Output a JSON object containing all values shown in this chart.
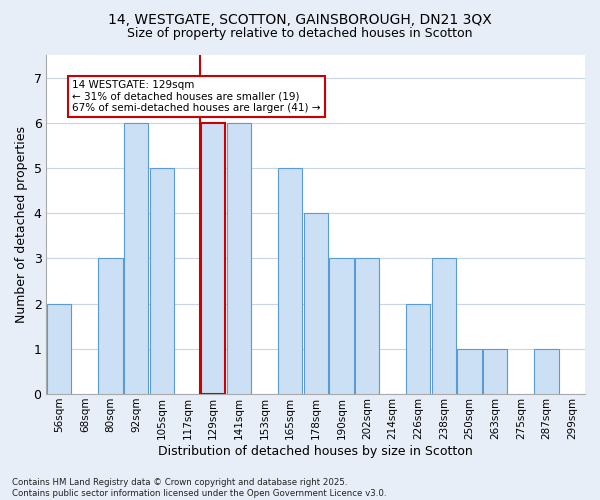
{
  "title_line1": "14, WESTGATE, SCOTTON, GAINSBOROUGH, DN21 3QX",
  "title_line2": "Size of property relative to detached houses in Scotton",
  "xlabel": "Distribution of detached houses by size in Scotton",
  "ylabel": "Number of detached properties",
  "footer": "Contains HM Land Registry data © Crown copyright and database right 2025.\nContains public sector information licensed under the Open Government Licence v3.0.",
  "categories": [
    "56sqm",
    "68sqm",
    "80sqm",
    "92sqm",
    "105sqm",
    "117sqm",
    "129sqm",
    "141sqm",
    "153sqm",
    "165sqm",
    "178sqm",
    "190sqm",
    "202sqm",
    "214sqm",
    "226sqm",
    "238sqm",
    "250sqm",
    "263sqm",
    "275sqm",
    "287sqm",
    "299sqm"
  ],
  "values": [
    2,
    0,
    3,
    6,
    5,
    0,
    6,
    6,
    0,
    5,
    4,
    3,
    3,
    0,
    2,
    3,
    1,
    1,
    0,
    1,
    0
  ],
  "highlight_index": 6,
  "bar_color": "#cce0f5",
  "bar_edge_color": "#5b9bd5",
  "highlight_bar_edge_color": "#cc0000",
  "highlight_line_color": "#cc0000",
  "annotation_text": "14 WESTGATE: 129sqm\n← 31% of detached houses are smaller (19)\n67% of semi-detached houses are larger (41) →",
  "annotation_box_edge": "#cc0000",
  "ylim": [
    0,
    7.5
  ],
  "yticks": [
    0,
    1,
    2,
    3,
    4,
    5,
    6,
    7
  ],
  "background_color": "#e8eef8",
  "plot_bg_color": "#ffffff",
  "grid_color": "#c8d4e8"
}
